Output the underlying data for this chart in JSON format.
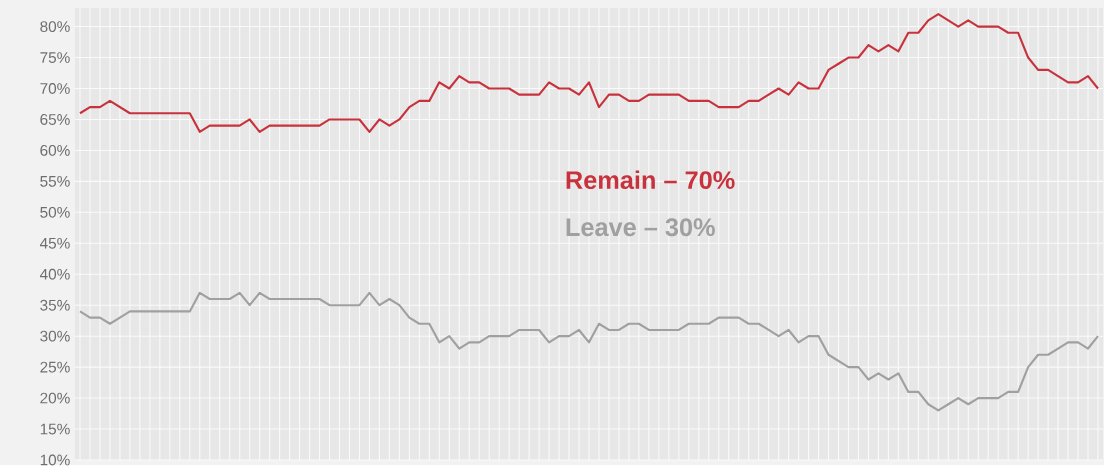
{
  "chart_data": {
    "type": "line",
    "categories": [
      null,
      null,
      null,
      null,
      null,
      null,
      null,
      null,
      null,
      null,
      null,
      null,
      null,
      null,
      null,
      null,
      null,
      null,
      null,
      null,
      null,
      null,
      null,
      null,
      null,
      null,
      null,
      null,
      null,
      null,
      null,
      null,
      null,
      null,
      null,
      null,
      null,
      null,
      null,
      null,
      null,
      null,
      null,
      null,
      null,
      null,
      null,
      null,
      null,
      null,
      null,
      null,
      null,
      null,
      null,
      null,
      null,
      null,
      null,
      null,
      null,
      null,
      null,
      null,
      null,
      null,
      null,
      null,
      null,
      null,
      null,
      null,
      null,
      null,
      null,
      null,
      null,
      null,
      null,
      null,
      null,
      null,
      null,
      null,
      null,
      null,
      null,
      null,
      null,
      null,
      null,
      null,
      null,
      null,
      null,
      null,
      null,
      null,
      null,
      null,
      null,
      null,
      null
    ],
    "series": [
      {
        "name": "Remain – 70%",
        "color": "#c8323c",
        "values": [
          66,
          67,
          67,
          68,
          67,
          66,
          66,
          66,
          66,
          66,
          66,
          66,
          63,
          64,
          64,
          64,
          64,
          65,
          63,
          64,
          64,
          64,
          64,
          64,
          64,
          65,
          65,
          65,
          65,
          63,
          65,
          64,
          65,
          67,
          68,
          68,
          71,
          70,
          72,
          71,
          71,
          70,
          70,
          70,
          69,
          69,
          69,
          71,
          70,
          70,
          69,
          71,
          67,
          69,
          69,
          68,
          68,
          69,
          69,
          69,
          69,
          68,
          68,
          68,
          67,
          67,
          67,
          68,
          68,
          69,
          70,
          69,
          71,
          70,
          70,
          73,
          74,
          75,
          75,
          77,
          76,
          77,
          76,
          79,
          79,
          81,
          82,
          81,
          80,
          81,
          80,
          80,
          80,
          79,
          79,
          75,
          73,
          73,
          72,
          71,
          71,
          72,
          70
        ]
      },
      {
        "name": "Leave – 30%",
        "color": "#a0a0a0",
        "values": [
          34,
          33,
          33,
          32,
          33,
          34,
          34,
          34,
          34,
          34,
          34,
          34,
          37,
          36,
          36,
          36,
          37,
          35,
          37,
          36,
          36,
          36,
          36,
          36,
          36,
          35,
          35,
          35,
          35,
          37,
          35,
          36,
          35,
          33,
          32,
          32,
          29,
          30,
          28,
          29,
          29,
          30,
          30,
          30,
          31,
          31,
          31,
          29,
          30,
          30,
          31,
          29,
          32,
          31,
          31,
          32,
          32,
          31,
          31,
          31,
          31,
          32,
          32,
          32,
          33,
          33,
          33,
          32,
          32,
          31,
          30,
          31,
          29,
          30,
          30,
          27,
          26,
          25,
          25,
          23,
          24,
          23,
          24,
          21,
          21,
          19,
          18,
          19,
          20,
          19,
          20,
          20,
          20,
          21,
          21,
          25,
          27,
          27,
          28,
          29,
          29,
          28,
          30
        ]
      }
    ],
    "ylim": [
      10,
      83
    ],
    "yticks": [
      {
        "value": 10,
        "label": "10%"
      },
      {
        "value": 15,
        "label": "15%"
      },
      {
        "value": 20,
        "label": "20%"
      },
      {
        "value": 25,
        "label": "25%"
      },
      {
        "value": 30,
        "label": "30%"
      },
      {
        "value": 35,
        "label": "35%"
      },
      {
        "value": 40,
        "label": "40%"
      },
      {
        "value": 45,
        "label": "45%"
      },
      {
        "value": 50,
        "label": "50%"
      },
      {
        "value": 55,
        "label": "55%"
      },
      {
        "value": 60,
        "label": "60%"
      },
      {
        "value": 65,
        "label": "65%"
      },
      {
        "value": 70,
        "label": "70%"
      },
      {
        "value": 75,
        "label": "75%"
      },
      {
        "value": 80,
        "label": "80%"
      }
    ],
    "grid": true
  }
}
